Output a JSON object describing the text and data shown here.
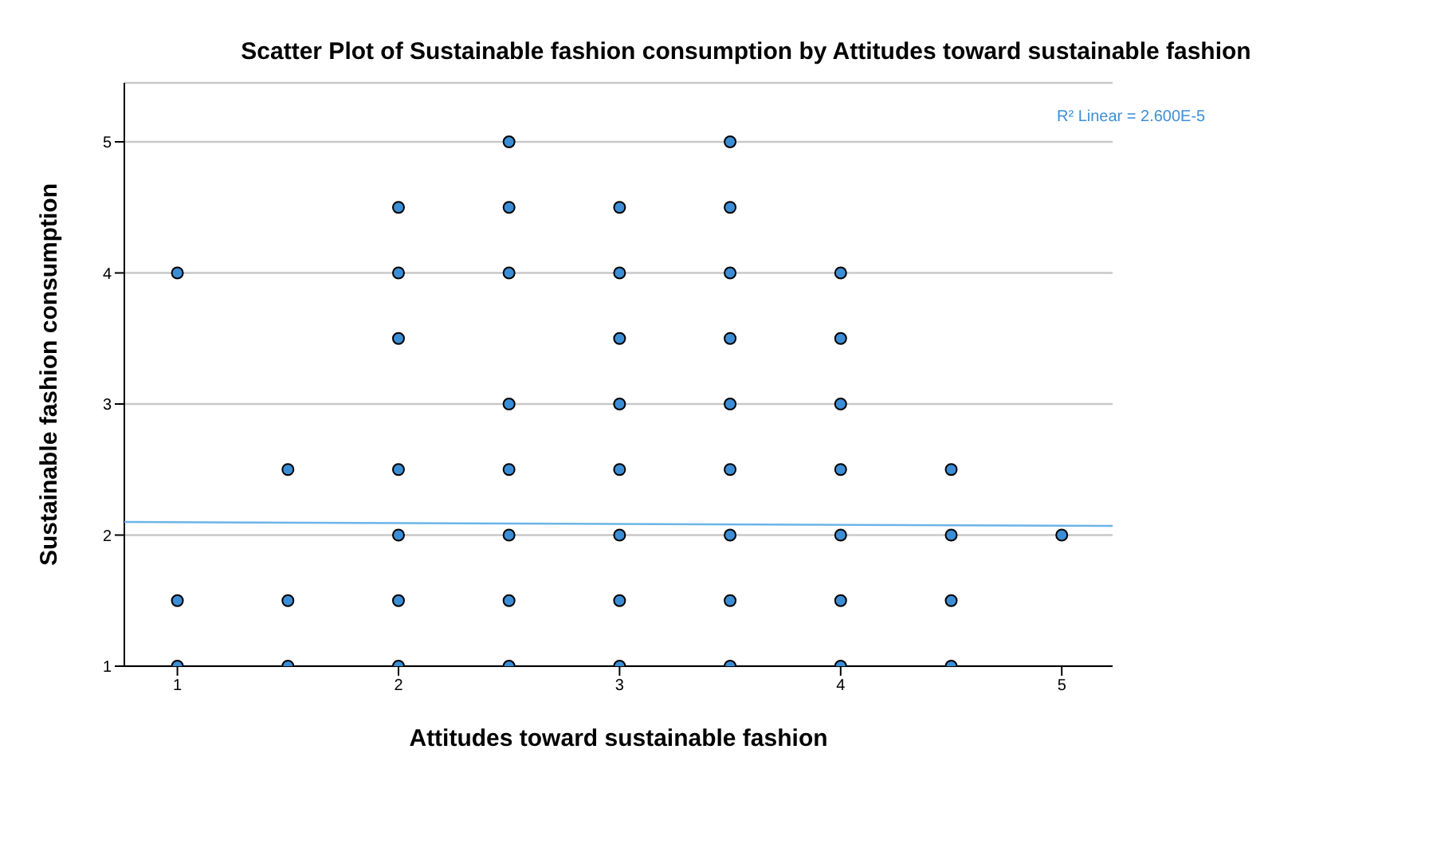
{
  "chart_data": {
    "type": "scatter",
    "title": "Scatter Plot of Sustainable fashion consumption by Attitudes toward sustainable fashion",
    "xlabel": "Attitudes toward sustainable fashion",
    "ylabel": "Sustainable fashion consumption",
    "annotations": [
      "R² Linear = 2.600E-5"
    ],
    "xlim": [
      0.76,
      5.23
    ],
    "ylim": [
      1,
      5.45
    ],
    "xticks": [
      1,
      2,
      3,
      4,
      5
    ],
    "yticks": [
      1,
      2,
      3,
      4,
      5
    ],
    "grid": "y",
    "marker": "circle",
    "series": [
      {
        "color": "#3b8ed6",
        "x": [
          1,
          1,
          1,
          1.5,
          1.5,
          1.5,
          2,
          2,
          2,
          2,
          2,
          2,
          2,
          2.5,
          2.5,
          2.5,
          2.5,
          2.5,
          2.5,
          2.5,
          2.5,
          3,
          3,
          3,
          3,
          3,
          3,
          3,
          3,
          3.5,
          3.5,
          3.5,
          3.5,
          3.5,
          3.5,
          3.5,
          3.5,
          3.5,
          4,
          4,
          4,
          4,
          4,
          4,
          4,
          4.5,
          4.5,
          4.5,
          4.5,
          5
        ],
        "values": [
          4,
          1.5,
          1,
          2.5,
          1.5,
          1,
          4.5,
          4,
          3.5,
          2.5,
          2,
          1.5,
          1,
          5,
          4.5,
          4,
          3,
          2.5,
          2,
          1.5,
          1,
          4.5,
          4,
          3.5,
          3,
          2.5,
          2,
          1.5,
          1,
          5,
          4.5,
          4,
          3.5,
          3,
          2.5,
          2,
          1.5,
          1,
          4,
          3.5,
          3,
          2.5,
          2,
          1.5,
          1,
          2.5,
          2,
          1.5,
          1,
          2
        ]
      },
      {
        "type": "line",
        "color": "#6cb4e8",
        "marker": "none",
        "x": [
          0.76,
          5.23
        ],
        "values": [
          2.1,
          2.07
        ]
      }
    ]
  }
}
